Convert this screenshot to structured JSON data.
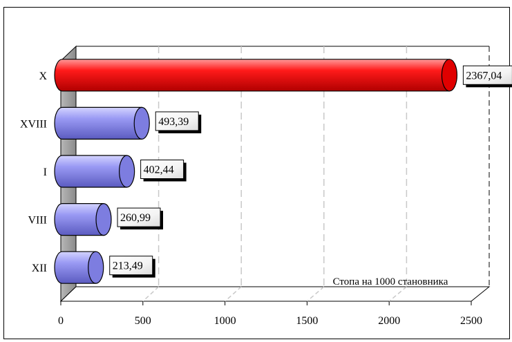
{
  "chart_data": {
    "type": "bar",
    "orientation": "horizontal",
    "three_d": true,
    "categories": [
      "X",
      "XVIII",
      "I",
      "VIII",
      "XII"
    ],
    "values": [
      2367.04,
      493.39,
      402.44,
      260.99,
      213.49
    ],
    "value_labels": [
      "2367,04",
      "493,39",
      "402,44",
      "260,99",
      "213,49"
    ],
    "highlight_index": 0,
    "colors": {
      "highlight": "#ff1a1a",
      "normal": "#8f8ff0",
      "wall": "#9a9a9a"
    },
    "xlim": [
      0,
      2500
    ],
    "xticks": [
      0,
      500,
      1000,
      1500,
      2000,
      2500
    ],
    "xtick_labels": [
      "0",
      "500",
      "1000",
      "1500",
      "2000",
      "2500"
    ],
    "grid": true,
    "annotation": "Стопа на  1000 становника"
  }
}
